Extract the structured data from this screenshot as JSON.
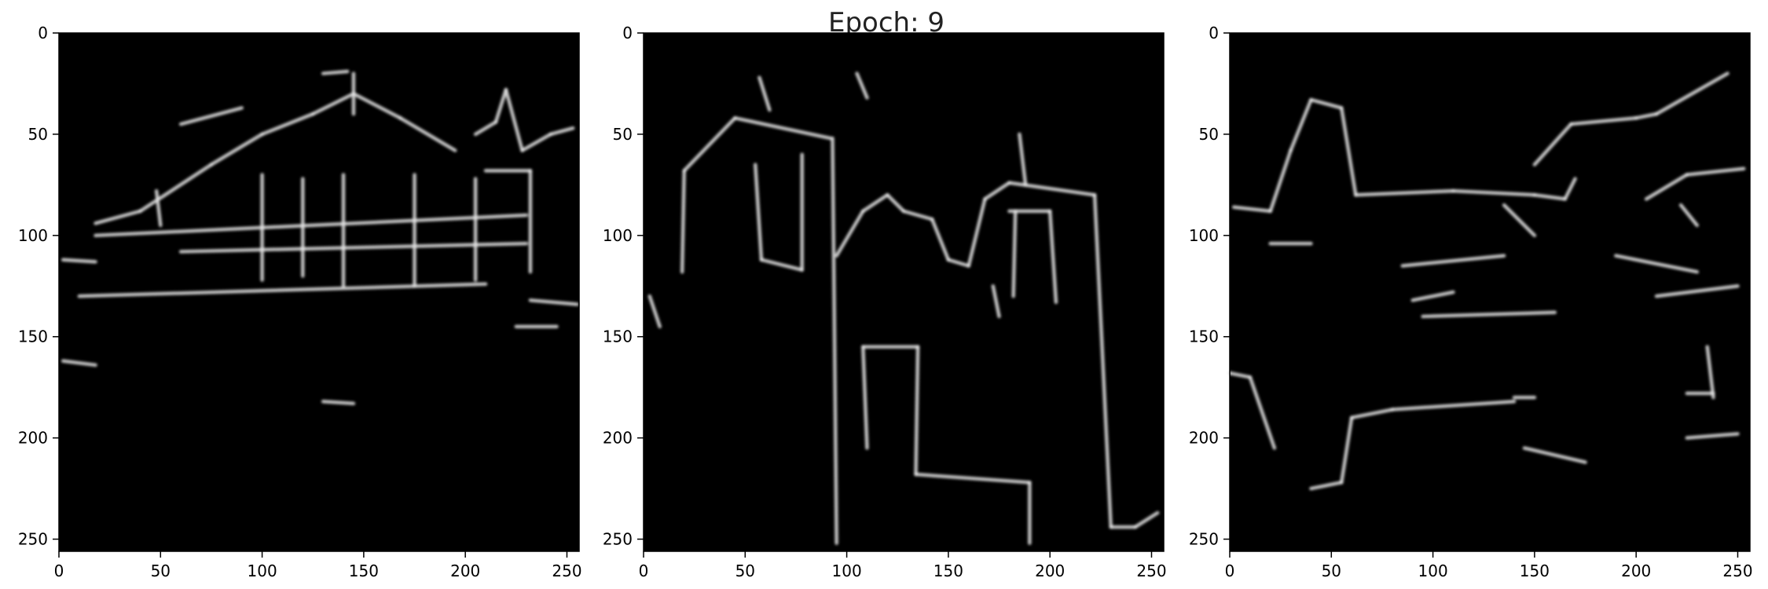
{
  "figure": {
    "title": "Epoch: 9"
  },
  "chart_data": [
    {
      "type": "heatmap",
      "colormap": "gray",
      "background": "#000000",
      "xlim": [
        0,
        256
      ],
      "ylim": [
        256,
        0
      ],
      "xticks": [
        0,
        50,
        100,
        150,
        200,
        250
      ],
      "yticks": [
        0,
        50,
        100,
        150,
        200,
        250
      ],
      "xtick_labels": [
        "0",
        "50",
        "100",
        "150",
        "200",
        "250"
      ],
      "ytick_labels": [
        "0",
        "50",
        "100",
        "150",
        "200",
        "250"
      ],
      "edges": [
        [
          [
            2,
            112
          ],
          [
            18,
            113
          ]
        ],
        [
          [
            2,
            162
          ],
          [
            18,
            164
          ]
        ],
        [
          [
            18,
            94
          ],
          [
            40,
            88
          ]
        ],
        [
          [
            10,
            130
          ],
          [
            210,
            124
          ]
        ],
        [
          [
            40,
            88
          ],
          [
            75,
            65
          ]
        ],
        [
          [
            75,
            65
          ],
          [
            100,
            50
          ]
        ],
        [
          [
            100,
            50
          ],
          [
            125,
            40
          ]
        ],
        [
          [
            125,
            40
          ],
          [
            145,
            30
          ]
        ],
        [
          [
            130,
            20
          ],
          [
            142,
            19
          ]
        ],
        [
          [
            145,
            30
          ],
          [
            168,
            42
          ]
        ],
        [
          [
            168,
            42
          ],
          [
            195,
            58
          ]
        ],
        [
          [
            60,
            45
          ],
          [
            90,
            37
          ]
        ],
        [
          [
            205,
            50
          ],
          [
            215,
            44
          ]
        ],
        [
          [
            215,
            44
          ],
          [
            220,
            28
          ]
        ],
        [
          [
            220,
            28
          ],
          [
            228,
            58
          ]
        ],
        [
          [
            228,
            58
          ],
          [
            242,
            50
          ]
        ],
        [
          [
            242,
            50
          ],
          [
            253,
            47
          ]
        ],
        [
          [
            18,
            100
          ],
          [
            230,
            90
          ]
        ],
        [
          [
            60,
            108
          ],
          [
            230,
            104
          ]
        ],
        [
          [
            210,
            68
          ],
          [
            232,
            68
          ]
        ],
        [
          [
            232,
            68
          ],
          [
            232,
            118
          ]
        ],
        [
          [
            232,
            132
          ],
          [
            255,
            134
          ]
        ],
        [
          [
            225,
            145
          ],
          [
            245,
            145
          ]
        ],
        [
          [
            130,
            182
          ],
          [
            145,
            183
          ]
        ],
        [
          [
            48,
            78
          ],
          [
            50,
            95
          ]
        ],
        [
          [
            100,
            70
          ],
          [
            100,
            122
          ]
        ],
        [
          [
            120,
            72
          ],
          [
            120,
            120
          ]
        ],
        [
          [
            140,
            70
          ],
          [
            140,
            125
          ]
        ],
        [
          [
            175,
            70
          ],
          [
            175,
            125
          ]
        ],
        [
          [
            205,
            72
          ],
          [
            205,
            122
          ]
        ],
        [
          [
            145,
            20
          ],
          [
            145,
            40
          ]
        ]
      ]
    },
    {
      "type": "heatmap",
      "colormap": "gray",
      "background": "#000000",
      "xlim": [
        0,
        256
      ],
      "ylim": [
        256,
        0
      ],
      "xticks": [
        0,
        50,
        100,
        150,
        200,
        250
      ],
      "yticks": [
        0,
        50,
        100,
        150,
        200,
        250
      ],
      "xtick_labels": [
        "0",
        "50",
        "100",
        "150",
        "200",
        "250"
      ],
      "ytick_labels": [
        "0",
        "50",
        "100",
        "150",
        "200",
        "250"
      ],
      "edges": [
        [
          [
            20,
            68
          ],
          [
            45,
            42
          ]
        ],
        [
          [
            45,
            42
          ],
          [
            92,
            52
          ]
        ],
        [
          [
            20,
            68
          ],
          [
            19,
            118
          ]
        ],
        [
          [
            55,
            65
          ],
          [
            58,
            112
          ]
        ],
        [
          [
            58,
            112
          ],
          [
            78,
            117
          ]
        ],
        [
          [
            78,
            117
          ],
          [
            78,
            60
          ]
        ],
        [
          [
            93,
            52
          ],
          [
            95,
            252
          ]
        ],
        [
          [
            95,
            110
          ],
          [
            108,
            88
          ]
        ],
        [
          [
            108,
            88
          ],
          [
            120,
            80
          ]
        ],
        [
          [
            120,
            80
          ],
          [
            128,
            88
          ]
        ],
        [
          [
            128,
            88
          ],
          [
            142,
            92
          ]
        ],
        [
          [
            142,
            92
          ],
          [
            150,
            112
          ]
        ],
        [
          [
            150,
            112
          ],
          [
            160,
            115
          ]
        ],
        [
          [
            160,
            115
          ],
          [
            168,
            82
          ]
        ],
        [
          [
            168,
            82
          ],
          [
            180,
            74
          ]
        ],
        [
          [
            180,
            74
          ],
          [
            222,
            80
          ]
        ],
        [
          [
            222,
            80
          ],
          [
            230,
            244
          ]
        ],
        [
          [
            230,
            244
          ],
          [
            242,
            244
          ]
        ],
        [
          [
            242,
            244
          ],
          [
            253,
            237
          ]
        ],
        [
          [
            108,
            155
          ],
          [
            135,
            155
          ]
        ],
        [
          [
            108,
            155
          ],
          [
            110,
            205
          ]
        ],
        [
          [
            135,
            155
          ],
          [
            134,
            218
          ]
        ],
        [
          [
            134,
            218
          ],
          [
            190,
            222
          ]
        ],
        [
          [
            190,
            222
          ],
          [
            190,
            252
          ]
        ],
        [
          [
            180,
            88
          ],
          [
            200,
            88
          ]
        ],
        [
          [
            200,
            88
          ],
          [
            203,
            133
          ]
        ],
        [
          [
            183,
            88
          ],
          [
            182,
            130
          ]
        ],
        [
          [
            172,
            125
          ],
          [
            175,
            140
          ]
        ],
        [
          [
            57,
            22
          ],
          [
            62,
            38
          ]
        ],
        [
          [
            105,
            20
          ],
          [
            110,
            32
          ]
        ],
        [
          [
            185,
            50
          ],
          [
            188,
            75
          ]
        ],
        [
          [
            3,
            130
          ],
          [
            8,
            145
          ]
        ]
      ]
    },
    {
      "type": "heatmap",
      "colormap": "gray",
      "background": "#000000",
      "xlim": [
        0,
        256
      ],
      "ylim": [
        256,
        0
      ],
      "xticks": [
        0,
        50,
        100,
        150,
        200,
        250
      ],
      "yticks": [
        0,
        50,
        100,
        150,
        200,
        250
      ],
      "xtick_labels": [
        "0",
        "50",
        "100",
        "150",
        "200",
        "250"
      ],
      "ytick_labels": [
        "0",
        "50",
        "100",
        "150",
        "200",
        "250"
      ],
      "edges": [
        [
          [
            2,
            86
          ],
          [
            20,
            88
          ]
        ],
        [
          [
            20,
            88
          ],
          [
            30,
            58
          ]
        ],
        [
          [
            30,
            58
          ],
          [
            40,
            33
          ]
        ],
        [
          [
            40,
            33
          ],
          [
            55,
            37
          ]
        ],
        [
          [
            55,
            37
          ],
          [
            62,
            80
          ]
        ],
        [
          [
            62,
            80
          ],
          [
            110,
            78
          ]
        ],
        [
          [
            110,
            78
          ],
          [
            150,
            80
          ]
        ],
        [
          [
            150,
            80
          ],
          [
            165,
            82
          ]
        ],
        [
          [
            165,
            82
          ],
          [
            170,
            72
          ]
        ],
        [
          [
            150,
            65
          ],
          [
            168,
            45
          ]
        ],
        [
          [
            168,
            45
          ],
          [
            200,
            42
          ]
        ],
        [
          [
            200,
            42
          ],
          [
            210,
            40
          ]
        ],
        [
          [
            210,
            40
          ],
          [
            245,
            20
          ]
        ],
        [
          [
            205,
            82
          ],
          [
            225,
            70
          ]
        ],
        [
          [
            225,
            70
          ],
          [
            253,
            67
          ]
        ],
        [
          [
            20,
            104
          ],
          [
            40,
            104
          ]
        ],
        [
          [
            85,
            115
          ],
          [
            135,
            110
          ]
        ],
        [
          [
            190,
            110
          ],
          [
            230,
            118
          ]
        ],
        [
          [
            210,
            130
          ],
          [
            250,
            125
          ]
        ],
        [
          [
            90,
            132
          ],
          [
            110,
            128
          ]
        ],
        [
          [
            95,
            140
          ],
          [
            160,
            138
          ]
        ],
        [
          [
            140,
            180
          ],
          [
            150,
            180
          ]
        ],
        [
          [
            80,
            186
          ],
          [
            140,
            182
          ]
        ],
        [
          [
            145,
            205
          ],
          [
            175,
            212
          ]
        ],
        [
          [
            222,
            85
          ],
          [
            230,
            95
          ]
        ],
        [
          [
            0,
            168
          ],
          [
            10,
            170
          ]
        ],
        [
          [
            10,
            170
          ],
          [
            22,
            205
          ]
        ],
        [
          [
            40,
            225
          ],
          [
            55,
            222
          ]
        ],
        [
          [
            55,
            222
          ],
          [
            60,
            190
          ]
        ],
        [
          [
            60,
            190
          ],
          [
            80,
            186
          ]
        ],
        [
          [
            225,
            200
          ],
          [
            250,
            198
          ]
        ],
        [
          [
            225,
            178
          ],
          [
            238,
            178
          ]
        ],
        [
          [
            235,
            155
          ],
          [
            238,
            180
          ]
        ],
        [
          [
            135,
            85
          ],
          [
            150,
            100
          ]
        ]
      ]
    }
  ]
}
